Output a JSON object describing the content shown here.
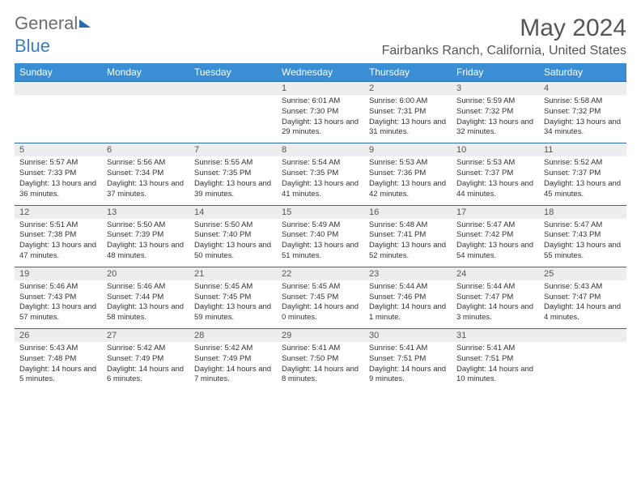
{
  "brand": {
    "part1": "General",
    "part2": "Blue"
  },
  "title": "May 2024",
  "location": "Fairbanks Ranch, California, United States",
  "day_names": [
    "Sunday",
    "Monday",
    "Tuesday",
    "Wednesday",
    "Thursday",
    "Friday",
    "Saturday"
  ],
  "colors": {
    "header_bg": "#3a8fd4",
    "accent_line": "#2a6bb0",
    "daynum_bg": "#ededed",
    "text": "#333333",
    "muted": "#555555"
  },
  "weeks": [
    [
      {
        "n": "",
        "sunrise": "",
        "sunset": "",
        "daylight": ""
      },
      {
        "n": "",
        "sunrise": "",
        "sunset": "",
        "daylight": ""
      },
      {
        "n": "",
        "sunrise": "",
        "sunset": "",
        "daylight": ""
      },
      {
        "n": "1",
        "sunrise": "Sunrise: 6:01 AM",
        "sunset": "Sunset: 7:30 PM",
        "daylight": "Daylight: 13 hours and 29 minutes."
      },
      {
        "n": "2",
        "sunrise": "Sunrise: 6:00 AM",
        "sunset": "Sunset: 7:31 PM",
        "daylight": "Daylight: 13 hours and 31 minutes."
      },
      {
        "n": "3",
        "sunrise": "Sunrise: 5:59 AM",
        "sunset": "Sunset: 7:32 PM",
        "daylight": "Daylight: 13 hours and 32 minutes."
      },
      {
        "n": "4",
        "sunrise": "Sunrise: 5:58 AM",
        "sunset": "Sunset: 7:32 PM",
        "daylight": "Daylight: 13 hours and 34 minutes."
      }
    ],
    [
      {
        "n": "5",
        "sunrise": "Sunrise: 5:57 AM",
        "sunset": "Sunset: 7:33 PM",
        "daylight": "Daylight: 13 hours and 36 minutes."
      },
      {
        "n": "6",
        "sunrise": "Sunrise: 5:56 AM",
        "sunset": "Sunset: 7:34 PM",
        "daylight": "Daylight: 13 hours and 37 minutes."
      },
      {
        "n": "7",
        "sunrise": "Sunrise: 5:55 AM",
        "sunset": "Sunset: 7:35 PM",
        "daylight": "Daylight: 13 hours and 39 minutes."
      },
      {
        "n": "8",
        "sunrise": "Sunrise: 5:54 AM",
        "sunset": "Sunset: 7:35 PM",
        "daylight": "Daylight: 13 hours and 41 minutes."
      },
      {
        "n": "9",
        "sunrise": "Sunrise: 5:53 AM",
        "sunset": "Sunset: 7:36 PM",
        "daylight": "Daylight: 13 hours and 42 minutes."
      },
      {
        "n": "10",
        "sunrise": "Sunrise: 5:53 AM",
        "sunset": "Sunset: 7:37 PM",
        "daylight": "Daylight: 13 hours and 44 minutes."
      },
      {
        "n": "11",
        "sunrise": "Sunrise: 5:52 AM",
        "sunset": "Sunset: 7:37 PM",
        "daylight": "Daylight: 13 hours and 45 minutes."
      }
    ],
    [
      {
        "n": "12",
        "sunrise": "Sunrise: 5:51 AM",
        "sunset": "Sunset: 7:38 PM",
        "daylight": "Daylight: 13 hours and 47 minutes."
      },
      {
        "n": "13",
        "sunrise": "Sunrise: 5:50 AM",
        "sunset": "Sunset: 7:39 PM",
        "daylight": "Daylight: 13 hours and 48 minutes."
      },
      {
        "n": "14",
        "sunrise": "Sunrise: 5:50 AM",
        "sunset": "Sunset: 7:40 PM",
        "daylight": "Daylight: 13 hours and 50 minutes."
      },
      {
        "n": "15",
        "sunrise": "Sunrise: 5:49 AM",
        "sunset": "Sunset: 7:40 PM",
        "daylight": "Daylight: 13 hours and 51 minutes."
      },
      {
        "n": "16",
        "sunrise": "Sunrise: 5:48 AM",
        "sunset": "Sunset: 7:41 PM",
        "daylight": "Daylight: 13 hours and 52 minutes."
      },
      {
        "n": "17",
        "sunrise": "Sunrise: 5:47 AM",
        "sunset": "Sunset: 7:42 PM",
        "daylight": "Daylight: 13 hours and 54 minutes."
      },
      {
        "n": "18",
        "sunrise": "Sunrise: 5:47 AM",
        "sunset": "Sunset: 7:43 PM",
        "daylight": "Daylight: 13 hours and 55 minutes."
      }
    ],
    [
      {
        "n": "19",
        "sunrise": "Sunrise: 5:46 AM",
        "sunset": "Sunset: 7:43 PM",
        "daylight": "Daylight: 13 hours and 57 minutes."
      },
      {
        "n": "20",
        "sunrise": "Sunrise: 5:46 AM",
        "sunset": "Sunset: 7:44 PM",
        "daylight": "Daylight: 13 hours and 58 minutes."
      },
      {
        "n": "21",
        "sunrise": "Sunrise: 5:45 AM",
        "sunset": "Sunset: 7:45 PM",
        "daylight": "Daylight: 13 hours and 59 minutes."
      },
      {
        "n": "22",
        "sunrise": "Sunrise: 5:45 AM",
        "sunset": "Sunset: 7:45 PM",
        "daylight": "Daylight: 14 hours and 0 minutes."
      },
      {
        "n": "23",
        "sunrise": "Sunrise: 5:44 AM",
        "sunset": "Sunset: 7:46 PM",
        "daylight": "Daylight: 14 hours and 1 minute."
      },
      {
        "n": "24",
        "sunrise": "Sunrise: 5:44 AM",
        "sunset": "Sunset: 7:47 PM",
        "daylight": "Daylight: 14 hours and 3 minutes."
      },
      {
        "n": "25",
        "sunrise": "Sunrise: 5:43 AM",
        "sunset": "Sunset: 7:47 PM",
        "daylight": "Daylight: 14 hours and 4 minutes."
      }
    ],
    [
      {
        "n": "26",
        "sunrise": "Sunrise: 5:43 AM",
        "sunset": "Sunset: 7:48 PM",
        "daylight": "Daylight: 14 hours and 5 minutes."
      },
      {
        "n": "27",
        "sunrise": "Sunrise: 5:42 AM",
        "sunset": "Sunset: 7:49 PM",
        "daylight": "Daylight: 14 hours and 6 minutes."
      },
      {
        "n": "28",
        "sunrise": "Sunrise: 5:42 AM",
        "sunset": "Sunset: 7:49 PM",
        "daylight": "Daylight: 14 hours and 7 minutes."
      },
      {
        "n": "29",
        "sunrise": "Sunrise: 5:41 AM",
        "sunset": "Sunset: 7:50 PM",
        "daylight": "Daylight: 14 hours and 8 minutes."
      },
      {
        "n": "30",
        "sunrise": "Sunrise: 5:41 AM",
        "sunset": "Sunset: 7:51 PM",
        "daylight": "Daylight: 14 hours and 9 minutes."
      },
      {
        "n": "31",
        "sunrise": "Sunrise: 5:41 AM",
        "sunset": "Sunset: 7:51 PM",
        "daylight": "Daylight: 14 hours and 10 minutes."
      },
      {
        "n": "",
        "sunrise": "",
        "sunset": "",
        "daylight": ""
      }
    ]
  ]
}
